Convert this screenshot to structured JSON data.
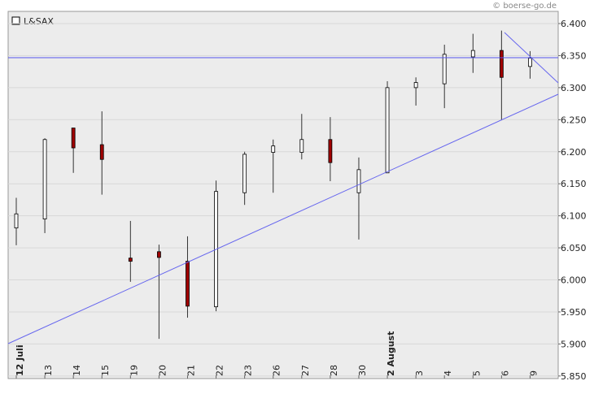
{
  "chart_data": {
    "type": "candlestick",
    "legend": "L&SAX",
    "credit": "© boerse-go.de",
    "categories": [
      "12 Juli",
      "13",
      "14",
      "15",
      "19",
      "20",
      "21",
      "22",
      "23",
      "26",
      "27",
      "28",
      "30",
      "2 August",
      "3",
      "4",
      "5",
      "6",
      "9"
    ],
    "open": [
      6.081,
      6.095,
      6.237,
      6.211,
      6.034,
      6.044,
      6.029,
      5.958,
      6.136,
      6.199,
      6.199,
      6.219,
      6.136,
      6.167,
      6.3,
      6.306,
      6.348,
      6.358,
      6.333
    ],
    "high": [
      6.128,
      6.221,
      6.237,
      6.263,
      6.092,
      6.055,
      6.068,
      6.155,
      6.2,
      6.219,
      6.259,
      6.254,
      6.191,
      6.31,
      6.316,
      6.367,
      6.384,
      6.389,
      6.357
    ],
    "low": [
      6.054,
      6.073,
      6.167,
      6.133,
      5.997,
      5.908,
      5.941,
      5.951,
      6.117,
      6.136,
      6.188,
      6.154,
      6.063,
      6.167,
      6.272,
      6.268,
      6.323,
      6.249,
      6.314
    ],
    "close": [
      6.103,
      6.219,
      6.206,
      6.188,
      6.029,
      6.035,
      5.959,
      6.138,
      6.196,
      6.209,
      6.219,
      6.183,
      6.172,
      6.3,
      6.308,
      6.352,
      6.358,
      6.316,
      6.346
    ],
    "up_color": "#ffffff",
    "down_color": "#a00000",
    "ylim": [
      5.846,
      6.419
    ],
    "yticks": [
      {
        "value": 5.85,
        "label": "5.850"
      },
      {
        "value": 5.9,
        "label": "5.900"
      },
      {
        "value": 5.95,
        "label": "5.950"
      },
      {
        "value": 6.0,
        "label": "6.000"
      },
      {
        "value": 6.05,
        "label": "6.050"
      },
      {
        "value": 6.1,
        "label": "6.100"
      },
      {
        "value": 6.15,
        "label": "6.150"
      },
      {
        "value": 6.2,
        "label": "6.200"
      },
      {
        "value": 6.25,
        "label": "6.250"
      },
      {
        "value": 6.3,
        "label": "6.300"
      },
      {
        "value": 6.35,
        "label": "6.350"
      },
      {
        "value": 6.4,
        "label": "6.400"
      }
    ],
    "grid": true
  }
}
